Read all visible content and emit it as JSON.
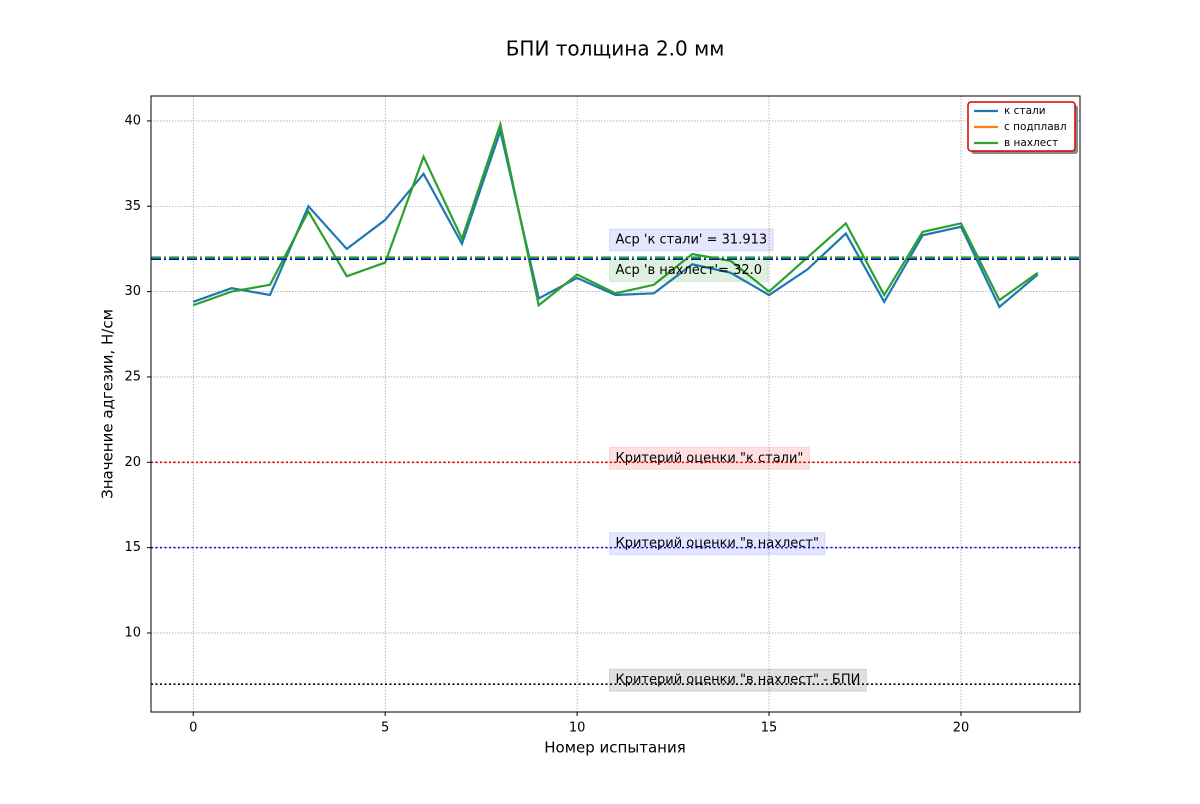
{
  "chart_data": {
    "type": "line",
    "title": "БПИ толщина 2.0 мм",
    "x_label": "Номер испытания",
    "y_label": "Значение адгезии, Н/см",
    "x": [
      0,
      1,
      2,
      3,
      4,
      5,
      6,
      7,
      8,
      9,
      10,
      11,
      12,
      13,
      14,
      15,
      16,
      17,
      18,
      19,
      20,
      21,
      22
    ],
    "series": [
      {
        "name": "к стали",
        "color": "#1f77b4",
        "values": [
          29.4,
          30.2,
          29.8,
          35.0,
          32.5,
          34.2,
          36.9,
          32.8,
          39.4,
          29.6,
          30.8,
          29.8,
          29.9,
          31.6,
          31.1,
          29.8,
          31.3,
          33.4,
          29.4,
          33.3,
          33.8,
          29.1,
          31.0
        ]
      },
      {
        "name": "с подплавл",
        "color": "#ff7f0e",
        "values": [
          null,
          null,
          null,
          null,
          null,
          null,
          null,
          null,
          null,
          null,
          null,
          null,
          null,
          null,
          null,
          null,
          null,
          null,
          null,
          null,
          null,
          null,
          null
        ]
      },
      {
        "name": "в нахлест",
        "color": "#2ca02c",
        "values": [
          29.2,
          30.0,
          30.4,
          34.7,
          30.9,
          31.7,
          37.9,
          33.1,
          39.8,
          29.2,
          31.0,
          29.9,
          30.4,
          32.2,
          31.8,
          30.0,
          32.0,
          34.0,
          29.8,
          33.5,
          34.0,
          29.5,
          31.1
        ]
      }
    ],
    "hlines": [
      {
        "value": 31.913,
        "color": "#0000cc",
        "style": "dashdot",
        "label": "Aср 'к стали' = 31.913",
        "box": "rgba(0,0,255,0.1)"
      },
      {
        "value": 32.0,
        "color": "#2ca02c",
        "style": "dashdot",
        "label": "Aср 'в нахлест'= 32.0",
        "box": "rgba(0,128,0,0.12)"
      },
      {
        "value": 20,
        "color": "#dd0000",
        "style": "dotted",
        "label": "Критерий оценки \"к стали\"",
        "box": "rgba(255,0,0,0.12)"
      },
      {
        "value": 15,
        "color": "#0000ee",
        "style": "dotted",
        "label": "Критерий оценки \"в нахлест\"",
        "box": "rgba(0,0,255,0.1)"
      },
      {
        "value": 7,
        "color": "#000000",
        "style": "dotted",
        "label": "Критерий оценки \"в нахлест\" - БПИ",
        "box": "rgba(0,0,0,0.12)"
      }
    ],
    "xlim": [
      -1.1,
      23.1
    ],
    "ylim": [
      5.37,
      41.46
    ],
    "xticks": [
      0,
      5,
      10,
      15,
      20
    ],
    "yticks": [
      10,
      15,
      20,
      25,
      30,
      35,
      40
    ],
    "grid": true,
    "legend": "upper right"
  }
}
